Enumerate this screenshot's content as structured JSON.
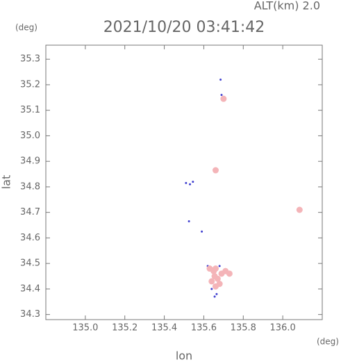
{
  "chart_data": {
    "type": "scatter",
    "title": "2021/10/20 03:41:42",
    "subtitle": "ALT(km) 2.0",
    "ylabel": "lat",
    "yunit": "(deg)",
    "xlabel": "lon",
    "xunit": "(deg)",
    "xlim": [
      134.8,
      136.2
    ],
    "ylim": [
      34.28,
      35.355
    ],
    "xticks": [
      {
        "value": 135.0,
        "label": "135.0"
      },
      135.2,
      135.4,
      135.6,
      135.8,
      {
        "value": 136.0,
        "label": "136.0"
      }
    ],
    "yticks": [
      34.3,
      34.4,
      34.5,
      34.6,
      34.7,
      34.8,
      34.9,
      {
        "value": 35.0,
        "label": "35.0"
      },
      35.1,
      35.2,
      35.3
    ],
    "series": [
      {
        "color": "#4040d0",
        "x": [
          135.685,
          135.69,
          135.655,
          135.51,
          135.53,
          135.545,
          135.525,
          135.59,
          135.62,
          135.655,
          135.68,
          135.64,
          135.665
        ],
        "values": [
          35.22,
          35.16,
          34.865,
          34.815,
          34.81,
          34.82,
          34.665,
          34.625,
          34.49,
          34.37,
          34.49,
          34.4,
          34.38
        ]
      },
      {
        "color": "#f4b4b8",
        "x": [
          135.7,
          135.66,
          136.085,
          135.63,
          135.65,
          135.67,
          135.64,
          135.66,
          135.69,
          135.71,
          135.73,
          135.68,
          135.655,
          135.66
        ],
        "values": [
          35.145,
          34.865,
          34.71,
          34.48,
          34.47,
          34.44,
          34.43,
          34.41,
          34.46,
          34.47,
          34.46,
          34.42,
          34.45,
          34.48
        ]
      }
    ]
  }
}
